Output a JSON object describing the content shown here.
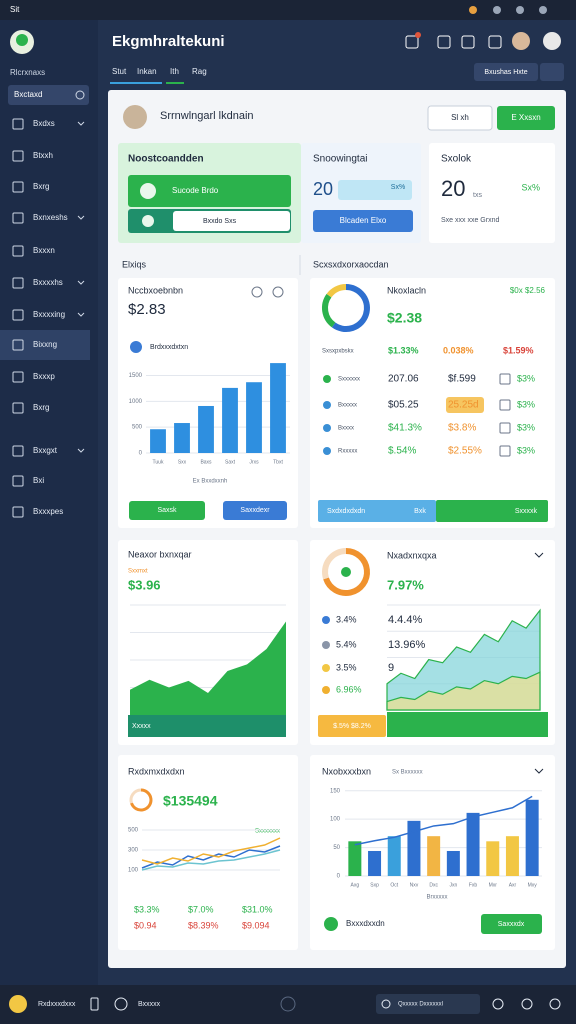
{
  "window": {
    "title": "Sit"
  },
  "app": {
    "title": "Ekgmhraltekuni",
    "tabs": [
      "Stut",
      "Inkan",
      "Ith",
      "Rag"
    ],
    "action": "Bxushas Hxte"
  },
  "sidebar": {
    "heading": "Rlcrxnaxs",
    "search": "Bxctaxd",
    "items": [
      "Bxdxs",
      "Btxxh",
      "Bxrg",
      "Bxnxeshs",
      "Bxxxn",
      "Bxxxxhs",
      "Bxxxxing",
      "Bixxng",
      "Bxxxp",
      "Bxrg",
      "Bxxgxt",
      "Bxi",
      "Bxxxpes"
    ]
  },
  "profile": {
    "name": "Srrnwlngarl lkdnain",
    "buttons": [
      "Sl xh",
      "E Xxsxn"
    ]
  },
  "summary": [
    {
      "title": "Noostcoandden",
      "buttons": [
        "Sucode Brdo",
        "Bxxdo Sxs"
      ]
    },
    {
      "title": "Snoowingtai",
      "value": "20",
      "badge": "Sx%",
      "button": "Blcaden Elxo"
    },
    {
      "title": "Sxolok",
      "value": "20",
      "unit": "txs",
      "change": "Sx%",
      "caption": "Sxe xxx xxe Grxnd"
    }
  ],
  "sections": [
    "Elxiqs",
    "Scxsxdxorxaocdan"
  ],
  "revenue": {
    "title": "Nccbxoebnbn",
    "value": "$2.83",
    "legend": "Brdxxxdxtxn",
    "xlabel": "Ex Bxxdxxnh",
    "buttons": [
      "Saxsk",
      "Saxxdexr"
    ],
    "chart": {
      "type": "bar",
      "categories": [
        "Tuuk",
        "Sxx",
        "Baxs",
        "Saxt",
        "Jrxs",
        "Tbxt"
      ],
      "values": [
        460,
        580,
        910,
        1260,
        1370,
        1740
      ],
      "color": "#2e8fe0",
      "ylim": [
        0,
        1800
      ],
      "yticks": [
        0,
        500,
        1000,
        1500
      ],
      "grid": true
    }
  },
  "breakdown": {
    "title": "Nkoxlacln",
    "badge": "$0x $2.56",
    "value": "$2.38",
    "header": [
      "Sxsxpxbskx",
      "$1.33%",
      "0.038%",
      "$1.59%"
    ],
    "rows": [
      [
        "Sxxxxxx",
        "207.06",
        "$f.599",
        "$3%"
      ],
      [
        "Bxxxxx",
        "$05.25",
        "25.25d",
        "$3%"
      ],
      [
        "Bxxxx",
        "$41.3%",
        "$3.8%",
        "$3%"
      ],
      [
        "Rxxxxx",
        "$.54%",
        "$2.55%",
        "$3%"
      ]
    ],
    "footer": [
      "Sxdxdxdxdn",
      "Bxk",
      "Sxxxxk"
    ],
    "chart": {
      "type": "pie",
      "values": [
        60,
        25,
        15
      ],
      "colors": [
        "#2e6fcf",
        "#2bb24c",
        "#f2c744"
      ]
    }
  },
  "growth": {
    "title": "Neaxor bxnxqar",
    "subtitle": "Sxxmxt",
    "value": "$3.96",
    "footer": "Xxxxx",
    "chart": {
      "type": "area",
      "values": [
        23,
        32,
        25,
        31,
        20,
        40,
        46,
        60,
        85
      ],
      "color": "#2bb24c",
      "ylim": [
        0,
        100
      ],
      "grid": true
    }
  },
  "metrics": {
    "title": "Nxadxnxqxa",
    "value": "7.97%",
    "list": [
      "3.4%",
      "5.4%",
      "3.5%",
      "6.96%"
    ],
    "stats": [
      "4.4.4%",
      "13.96%",
      "9"
    ],
    "footer": "$.5% $8.2%",
    "donut": {
      "type": "pie",
      "values": [
        70,
        30
      ],
      "colors": [
        "#f0922e",
        "#f6dcc0"
      ]
    },
    "chart": {
      "type": "area",
      "ylim": [
        0,
        100
      ],
      "grid": true,
      "series": [
        {
          "values": [
            25,
            35,
            30,
            48,
            45,
            60,
            55,
            72,
            65,
            85,
            78,
            95
          ],
          "color": "#7fd3d8"
        },
        {
          "values": [
            8,
            12,
            10,
            18,
            15,
            22,
            20,
            28,
            25,
            32,
            30,
            36
          ],
          "color": "#f1e08a"
        }
      ]
    }
  },
  "returns": {
    "title": "Rxdxmxdxdxn",
    "value": "$135494",
    "legend": "Sxxxxxxx",
    "stats": [
      [
        "$3.3%",
        "$7.0%",
        "$31.0%"
      ],
      [
        "$0.94",
        "$8.39%",
        "$9.094"
      ]
    ],
    "chart": {
      "type": "line",
      "ylim": [
        0,
        600
      ],
      "yticks": [
        100,
        300,
        500
      ],
      "grid": true,
      "series": [
        {
          "values": [
            120,
            180,
            150,
            240,
            200,
            260,
            230,
            300,
            280,
            340
          ],
          "color": "#2e6fcf"
        },
        {
          "values": [
            200,
            160,
            220,
            190,
            260,
            230,
            290,
            320,
            350,
            420
          ],
          "color": "#f0b030"
        },
        {
          "values": [
            100,
            140,
            130,
            170,
            160,
            190,
            200,
            230,
            260,
            300
          ],
          "color": "#6cc4d0"
        }
      ]
    }
  },
  "sales": {
    "title": "Nxobxxxbxn",
    "subtitle": "Sx Bxxxxxx",
    "xlabel": "Brxxxxx",
    "footer": "Bxxxdxxdn",
    "button": "Saxxxdx",
    "chart": {
      "type": "bar",
      "categories": [
        "Axg",
        "Sxp",
        "Oct",
        "Nxv",
        "Dxc",
        "Jxn",
        "Fxb",
        "Mxr",
        "Axr",
        "Mxy"
      ],
      "values": [
        61,
        44,
        70,
        97,
        70,
        44,
        111,
        61,
        70,
        134
      ],
      "colors": [
        "#2bb24c",
        "#2e6fcf",
        "#3aa0dc",
        "#2e6fcf",
        "#f2b544",
        "#2e6fcf",
        "#2e6fcf",
        "#f2c744",
        "#f2c744",
        "#2e6fcf"
      ],
      "line": {
        "values": [
          55,
          62,
          68,
          78,
          88,
          92,
          104,
          112,
          120,
          140
        ],
        "color": "#2e6fcf"
      },
      "ylim": [
        0,
        160
      ],
      "yticks": [
        0,
        50,
        100,
        150
      ],
      "grid": true
    }
  },
  "taskbar": {
    "user": "Rxdxxxdxxx",
    "app": "Bxxxxx",
    "search": "Qxxxxx Dxxxxxxl"
  }
}
